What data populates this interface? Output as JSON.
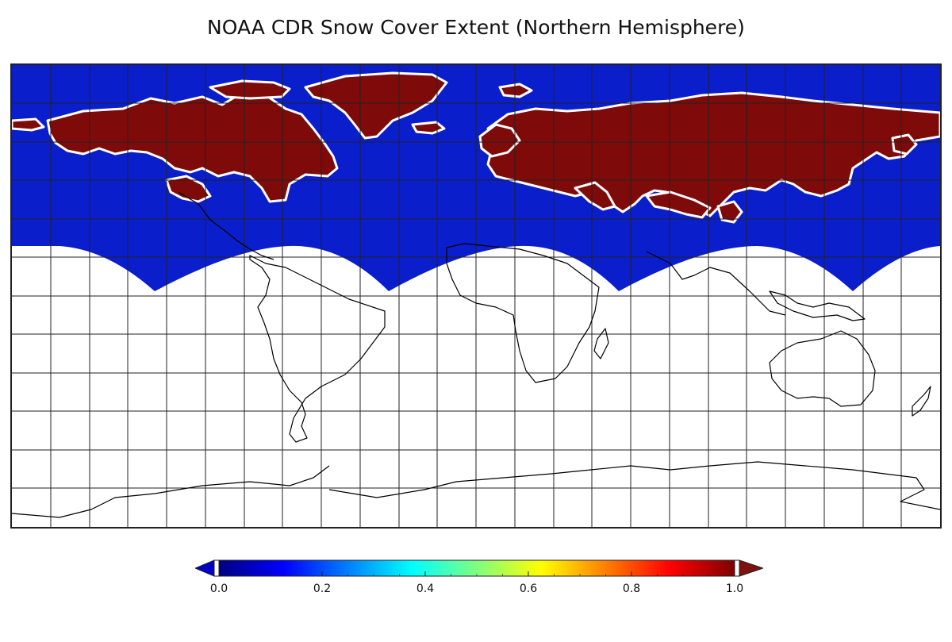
{
  "title": "NOAA CDR Snow Cover Extent (Northern Hemisphere)",
  "map": {
    "projection": "equirectangular",
    "coverage": "Northern Hemisphere",
    "gridlines": true,
    "land_outline_color": "#000000",
    "no_snow_color": "#0a1ecc",
    "snow_color": "#7f0a0a",
    "edge_colors": [
      "#ffffff",
      "#f5d020",
      "#c82a10"
    ],
    "no_data_color": "#ffffff"
  },
  "colorbar": {
    "min": 0.0,
    "max": 1.0,
    "extend": "both",
    "ticks": [
      "0.0",
      "0.2",
      "0.4",
      "0.6",
      "0.8",
      "1.0"
    ],
    "colormap": "jet",
    "stops": [
      "#00007f",
      "#0000ff",
      "#007fff",
      "#00ffff",
      "#7fff7f",
      "#ffff00",
      "#ff7f00",
      "#ff0000",
      "#7f0000"
    ]
  }
}
